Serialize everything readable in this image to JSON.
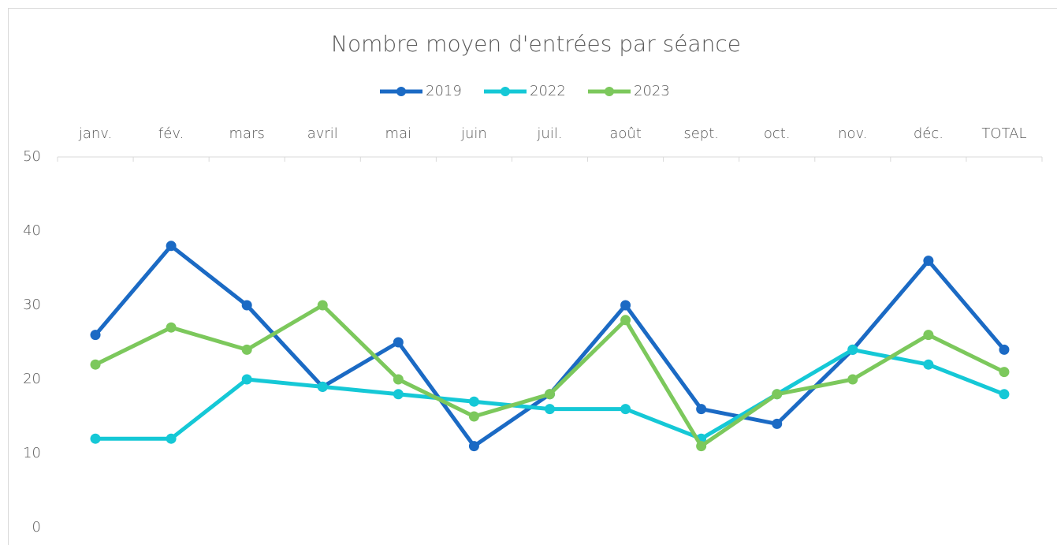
{
  "chart_data": {
    "type": "line",
    "title": "Nombre moyen d'entrées par séance",
    "categories": [
      "janv.",
      "fév.",
      "mars",
      "avril",
      "mai",
      "juin",
      "juil.",
      "août",
      "sept.",
      "oct.",
      "nov.",
      "déc.",
      "TOTAL"
    ],
    "series": [
      {
        "name": "2019",
        "color": "#1b6ac4",
        "values": [
          26,
          38,
          30,
          19,
          25,
          11,
          18,
          30,
          16,
          14,
          24,
          36,
          24
        ]
      },
      {
        "name": "2022",
        "color": "#15c8d6",
        "values": [
          12,
          12,
          20,
          19,
          18,
          17,
          16,
          16,
          12,
          18,
          24,
          22,
          18
        ]
      },
      {
        "name": "2023",
        "color": "#7cc85c",
        "values": [
          22,
          27,
          24,
          30,
          20,
          15,
          18,
          28,
          11,
          18,
          20,
          26,
          21
        ]
      }
    ],
    "ylim": [
      0,
      50
    ],
    "yticks": [
      0,
      10,
      20,
      30,
      40,
      50
    ],
    "grid": false,
    "legend": "top",
    "xaxis_position": "top"
  }
}
